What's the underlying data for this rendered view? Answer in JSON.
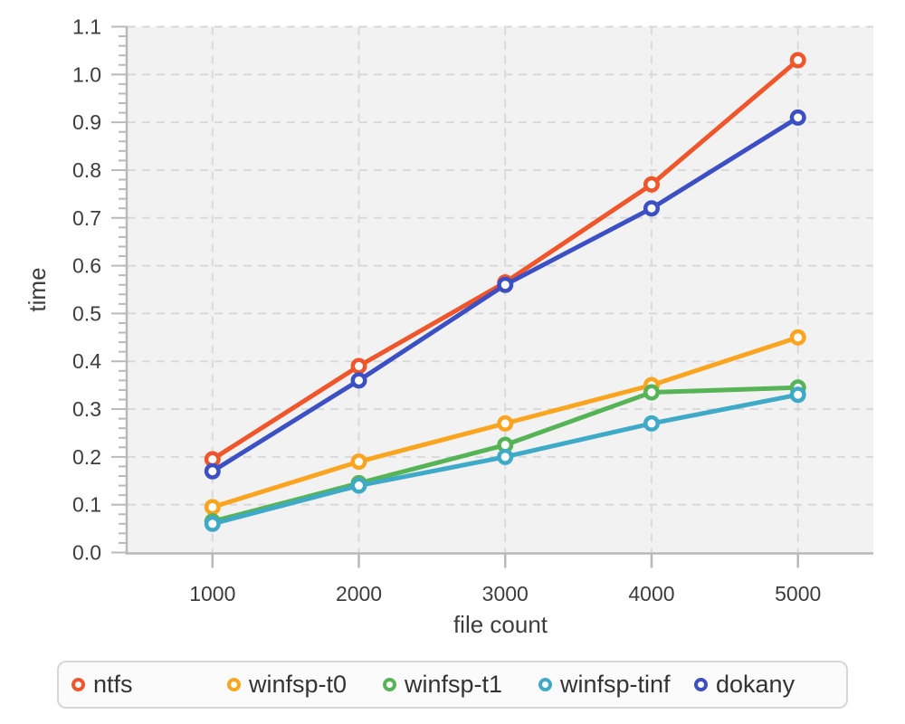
{
  "figure": {
    "background": "#ffffff",
    "plot_background": "#f2f2f2",
    "grid_color": "#d9d9d9",
    "axis_color": "#b9b9b9",
    "text_color": "#3d3d3d",
    "marker_fill": "#ffffff",
    "legend_border": "#d6d6d6",
    "legend_background": "#fbfbfb"
  },
  "chart_data": {
    "type": "line",
    "title": "",
    "xlabel": "file count",
    "ylabel": "time",
    "x": [
      1000,
      2000,
      3000,
      4000,
      5000
    ],
    "x_tick_labels": [
      "1000",
      "2000",
      "3000",
      "4000",
      "5000"
    ],
    "y_tick_labels": [
      "0.0",
      "0.1",
      "0.2",
      "0.3",
      "0.4",
      "0.5",
      "0.6",
      "0.7",
      "0.8",
      "0.9",
      "1.0",
      "1.1"
    ],
    "xlim": [
      420,
      5515
    ],
    "ylim": [
      0,
      1.1
    ],
    "y_tick_step": 0.1,
    "y_minor_tick_step": 0.02,
    "grid": true,
    "grid_style": "dashed",
    "legend_position": "bottom",
    "series": [
      {
        "name": "ntfs",
        "color": "#f0562b",
        "values": [
          0.195,
          0.39,
          0.565,
          0.77,
          1.03
        ]
      },
      {
        "name": "winfsp-t0",
        "color": "#faa41f",
        "values": [
          0.095,
          0.19,
          0.27,
          0.35,
          0.45
        ]
      },
      {
        "name": "winfsp-t1",
        "color": "#56b356",
        "values": [
          0.065,
          0.145,
          0.225,
          0.335,
          0.345
        ]
      },
      {
        "name": "winfsp-tinf",
        "color": "#3faac7",
        "values": [
          0.06,
          0.14,
          0.2,
          0.27,
          0.33
        ]
      },
      {
        "name": "dokany",
        "color": "#3c50c3",
        "values": [
          0.17,
          0.36,
          0.56,
          0.72,
          0.91
        ]
      }
    ]
  }
}
